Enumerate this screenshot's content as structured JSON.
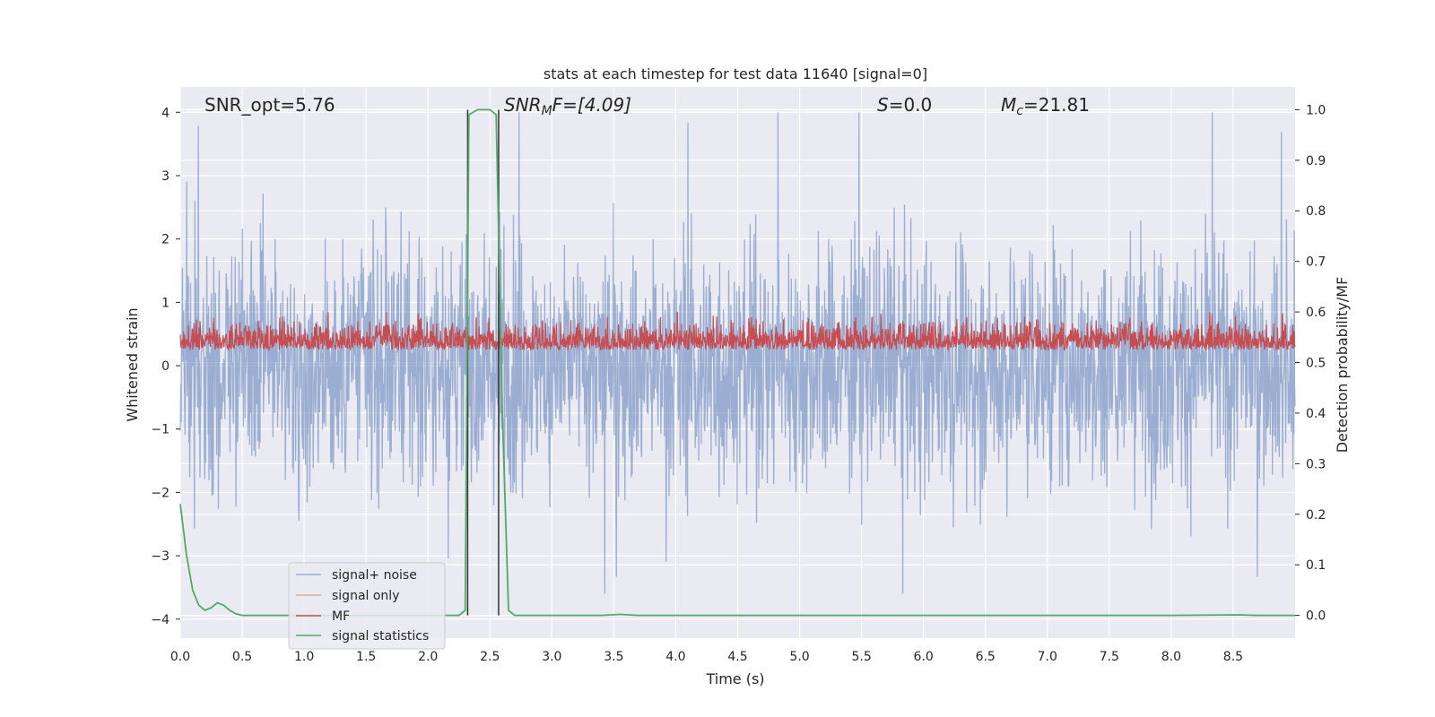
{
  "chart_data": {
    "type": "line",
    "title": "stats at each timestep for test data 11640 [signal=0]",
    "xlabel": "Time (s)",
    "ylabel": "Whitened strain",
    "ylabel_right": "Detection probability/MF",
    "xlim": [
      0.0,
      9.0
    ],
    "ylim": [
      -4.3,
      4.4
    ],
    "ylim_right": [
      -0.045,
      1.045
    ],
    "x_ticks": [
      "0.0",
      "0.5",
      "1.0",
      "1.5",
      "2.0",
      "2.5",
      "3.0",
      "3.5",
      "4.0",
      "4.5",
      "5.0",
      "5.5",
      "6.0",
      "6.5",
      "7.0",
      "7.5",
      "8.0",
      "8.5"
    ],
    "y_ticks": [
      "4",
      "3",
      "2",
      "1",
      "0",
      "−1",
      "−2",
      "−3",
      "−4"
    ],
    "y_right_ticks": [
      "1.0",
      "0.9",
      "0.8",
      "0.7",
      "0.6",
      "0.5",
      "0.4",
      "0.3",
      "0.2",
      "0.1",
      "0.0"
    ],
    "grid": true,
    "legend_position": "lower-left",
    "background": "#eaeaf2",
    "annotations": {
      "snr_opt": "SNR_opt=5.76",
      "snr_mf_base": "SNR",
      "snr_mf_sub": "M",
      "snr_mf_rest": "F=[4.09]",
      "s_var": "S",
      "s_rest": "=0.0",
      "mc_base": "M",
      "mc_sub": "c",
      "mc_rest": "=21.81"
    },
    "series": [
      {
        "name": "signal+ noise",
        "color": "#4c72b0",
        "axis": "left",
        "description_range": [
          -3.6,
          4.0
        ]
      },
      {
        "name": "signal only",
        "color": "#dd8452",
        "axis": "left",
        "values": []
      },
      {
        "name": "MF",
        "color": "#c44e52",
        "axis": "right",
        "description_range": [
          0.5,
          0.6
        ]
      },
      {
        "name": "signal statistics",
        "color": "#55a868",
        "axis": "right",
        "x": [
          0.0,
          0.05,
          0.1,
          0.15,
          0.2,
          0.25,
          0.3,
          0.35,
          0.4,
          0.45,
          0.5,
          1.0,
          1.5,
          2.0,
          2.25,
          2.3,
          2.33,
          2.4,
          2.45,
          2.5,
          2.55,
          2.6,
          2.65,
          2.7,
          2.75,
          3.0,
          3.4,
          3.55,
          3.7,
          4.0,
          5.0,
          6.0,
          7.0,
          8.0,
          8.55,
          8.7,
          9.0
        ],
        "y": [
          0.22,
          0.12,
          0.05,
          0.02,
          0.01,
          0.015,
          0.025,
          0.02,
          0.01,
          0.003,
          0.0,
          0.0,
          0.0,
          0.0,
          0.0,
          0.01,
          0.99,
          1.0,
          1.0,
          1.0,
          0.99,
          0.4,
          0.01,
          0.0,
          0.0,
          0.0,
          0.0,
          0.002,
          0.0,
          0.0,
          0.0,
          0.0,
          0.0,
          0.0,
          0.001,
          0.0,
          0.0
        ]
      }
    ],
    "vertical_lines": [
      {
        "x": 2.32,
        "y_range": [
          0.0,
          1.0
        ],
        "color": "#333333"
      },
      {
        "x": 2.57,
        "y_range": [
          0.0,
          1.0
        ],
        "color": "#333333"
      }
    ]
  }
}
